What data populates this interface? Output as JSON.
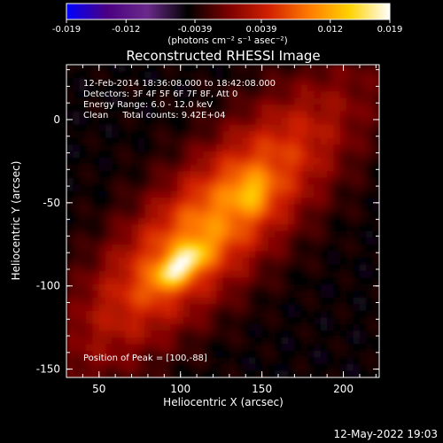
{
  "chart_data": {
    "type": "heatmap",
    "title": "Reconstructed RHESSI Image",
    "xlabel": "Heliocentric X (arcsec)",
    "ylabel": "Heliocentric Y (arcsec)",
    "xlim": [
      30,
      222
    ],
    "ylim": [
      -155,
      33
    ],
    "xticks": [
      50,
      100,
      150,
      200
    ],
    "yticks": [
      0,
      -50,
      -100,
      -150
    ],
    "colorbar": {
      "range": [
        -0.019,
        0.019
      ],
      "ticks": [
        "-0.019",
        "-0.012",
        "-0.0039",
        "0.0039",
        "0.012",
        "0.019"
      ],
      "tick_values": [
        -0.019,
        -0.012,
        -0.0039,
        0.0039,
        0.012,
        0.019
      ],
      "unit_label": "(photons cm⁻² s⁻¹ asec⁻²)",
      "colormap": [
        "#0000ff",
        "#4b0082",
        "#6a2a8a",
        "#000000",
        "#7a0000",
        "#d12000",
        "#ff7a00",
        "#ffd200",
        "#ffffff"
      ]
    },
    "sources": [
      {
        "x": 100,
        "y": -88,
        "level": 0.019
      },
      {
        "x": 144,
        "y": -44,
        "level": 0.013
      }
    ],
    "background_level": -0.0045,
    "info_lines": [
      "12-Feb-2014 18:36:08.000 to 18:42:08.000",
      "Detectors: 3F 4F 5F 6F 7F 8F, Att 0",
      "Energy Range: 6.0 - 12.0 keV",
      "Clean     Total counts: 9.42E+04"
    ],
    "peak_label": "Position of Peak = [100,-88]"
  },
  "timestamp": "12-May-2022 19:03"
}
